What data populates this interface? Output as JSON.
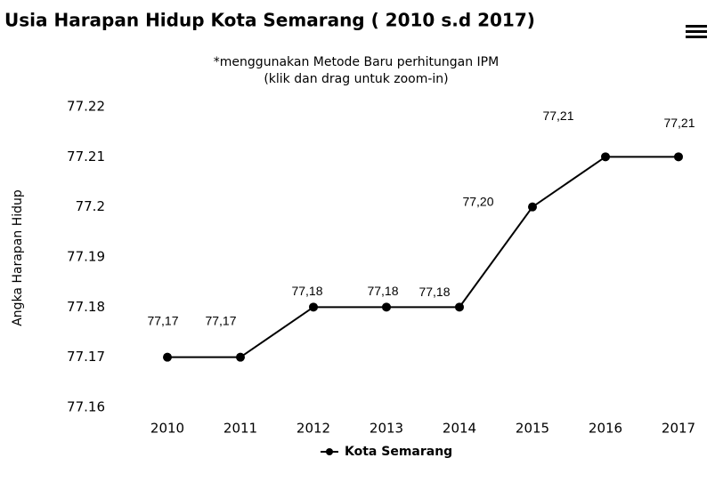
{
  "chart_data": {
    "type": "line",
    "title": "Usia Harapan Hidup Kota Semarang ( 2010 s.d 2017)",
    "subtitle": [
      "*menggunakan Metode Baru perhitungan IPM",
      "(klik dan drag untuk zoom-in)"
    ],
    "y_label": "Angka Harapan Hidup",
    "categories": [
      "2010",
      "2011",
      "2012",
      "2013",
      "2014",
      "2015",
      "2016",
      "2017"
    ],
    "series": [
      {
        "name": "Kota Semarang",
        "color": "#000000",
        "values": [
          77.17,
          77.17,
          77.18,
          77.18,
          77.18,
          77.2,
          77.21,
          77.21
        ],
        "value_labels": [
          "77,17",
          "77,17",
          "77,18",
          "77,18",
          "77,18",
          "77,20",
          "77,21",
          "77,21"
        ]
      }
    ],
    "ylim": [
      77.16,
      77.22
    ],
    "yticks": [
      77.16,
      77.17,
      77.18,
      77.19,
      77.2,
      77.21,
      77.22
    ],
    "grid": false,
    "legend": "bottom"
  }
}
